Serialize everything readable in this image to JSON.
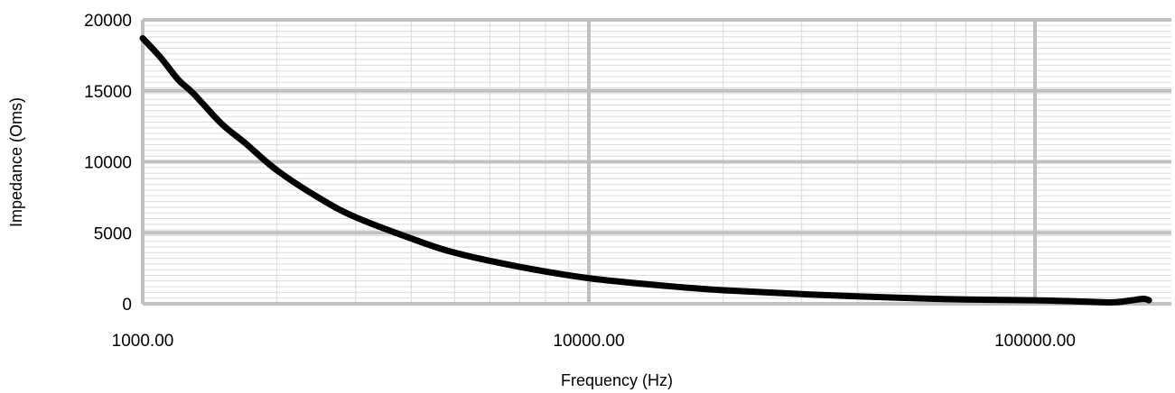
{
  "chart_data": {
    "type": "line",
    "xscale": "log",
    "xlim": [
      1000,
      180000
    ],
    "ylim": [
      0,
      20000
    ],
    "grid": true,
    "legend": "none",
    "xlabel": "Frequency (Hz)",
    "ylabel": "Impedance (Oms)",
    "x_tick_labels": [
      "1000.00",
      "10000.00",
      "100000.00"
    ],
    "y_tick_labels": [
      "0",
      "5000",
      "10000",
      "15000",
      "20000"
    ],
    "colors": {
      "line": "#000000",
      "grid_major": "#c0c0c0",
      "grid_minor": "#dadada"
    },
    "series": [
      {
        "x": [
          1000,
          1100,
          1200,
          1300,
          1500,
          1700,
          2000,
          2500,
          3000,
          4000,
          5000,
          7000,
          10000,
          15000,
          20000,
          30000,
          50000,
          70000,
          100000,
          130000,
          150000,
          165000,
          175000,
          180000
        ],
        "values": [
          18700,
          17300,
          15800,
          14800,
          12700,
          11300,
          9400,
          7400,
          6100,
          4600,
          3600,
          2600,
          1800,
          1250,
          950,
          680,
          420,
          300,
          250,
          150,
          100,
          250,
          350,
          250
        ]
      }
    ]
  }
}
